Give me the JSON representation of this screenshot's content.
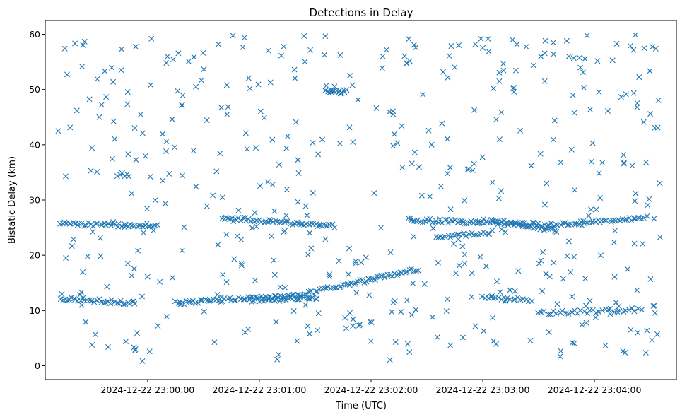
{
  "chart_data": {
    "type": "scatter",
    "title": "Detections in Delay",
    "xlabel": "Time (UTC)",
    "ylabel": "Bistatic Delay (km)",
    "x_unit": "seconds after 2024-12-22 23:00:00 UTC",
    "xlim": [
      -55,
      284
    ],
    "ylim": [
      -2.5,
      62.5
    ],
    "x_tick_values": [
      0,
      60,
      120,
      180,
      240
    ],
    "x_tick_labels": [
      "2024-12-22 23:00:00",
      "2024-12-22 23:01:00",
      "2024-12-22 23:02:00",
      "2024-12-22 23:03:00",
      "2024-12-22 23:04:00"
    ],
    "y_ticks": [
      0,
      10,
      20,
      30,
      40,
      50,
      60
    ],
    "marker": "x",
    "color": "#1f77b4",
    "grid": false,
    "legend": "none",
    "series": [
      {
        "tracks": [
          {
            "x0": -47,
            "x1": -7,
            "y0": 12.2,
            "y1": 11.3,
            "n": 34
          },
          {
            "x0": 15,
            "x1": 80,
            "y0": 11.4,
            "y1": 12.6,
            "n": 55
          },
          {
            "x0": 80,
            "x1": 145,
            "y0": 12.6,
            "y1": 17.5,
            "n": 58
          },
          {
            "x0": 55,
            "x1": 90,
            "y0": 11.8,
            "y1": 12.3,
            "n": 30
          },
          {
            "x0": -47,
            "x1": 5,
            "y0": 25.8,
            "y1": 25.2,
            "n": 45
          },
          {
            "x0": 40,
            "x1": 100,
            "y0": 26.8,
            "y1": 25.2,
            "n": 55
          },
          {
            "x0": 140,
            "x1": 210,
            "y0": 26.4,
            "y1": 25.6,
            "n": 65
          },
          {
            "x0": 210,
            "x1": 268,
            "y0": 25.3,
            "y1": 26.8,
            "n": 50
          },
          {
            "x0": 155,
            "x1": 185,
            "y0": 23.2,
            "y1": 24.2,
            "n": 25
          },
          {
            "x0": 185,
            "x1": 220,
            "y0": 26.2,
            "y1": 24.5,
            "n": 30
          },
          {
            "x0": 180,
            "x1": 206,
            "y0": 12.2,
            "y1": 12.0,
            "n": 20
          },
          {
            "x0": 210,
            "x1": 265,
            "y0": 9.5,
            "y1": 10.2,
            "n": 35
          },
          {
            "x0": 95,
            "x1": 107,
            "y0": 49.6,
            "y1": 49.6,
            "n": 16
          },
          {
            "x0": -16,
            "x1": -10,
            "y0": 34.6,
            "y1": 34.6,
            "n": 6
          }
        ],
        "noise_count": 460,
        "x": [
          -48,
          -44,
          -38,
          -26,
          -14,
          2,
          10,
          22,
          38,
          52,
          66,
          84,
          110,
          126,
          144,
          162,
          176,
          196,
          218,
          236,
          252,
          262,
          270,
          274
        ],
        "y": [
          42.5,
          34.3,
          46.2,
          45.0,
          57.3,
          59.2,
          54.8,
          55.1,
          58.2,
          59.4,
          51.3,
          59.7,
          50.8,
          53.9,
          57.6,
          56.1,
          58.2,
          59.0,
          56.4,
          59.8,
          58.3,
          59.9,
          45.6,
          43.1
        ]
      }
    ]
  }
}
